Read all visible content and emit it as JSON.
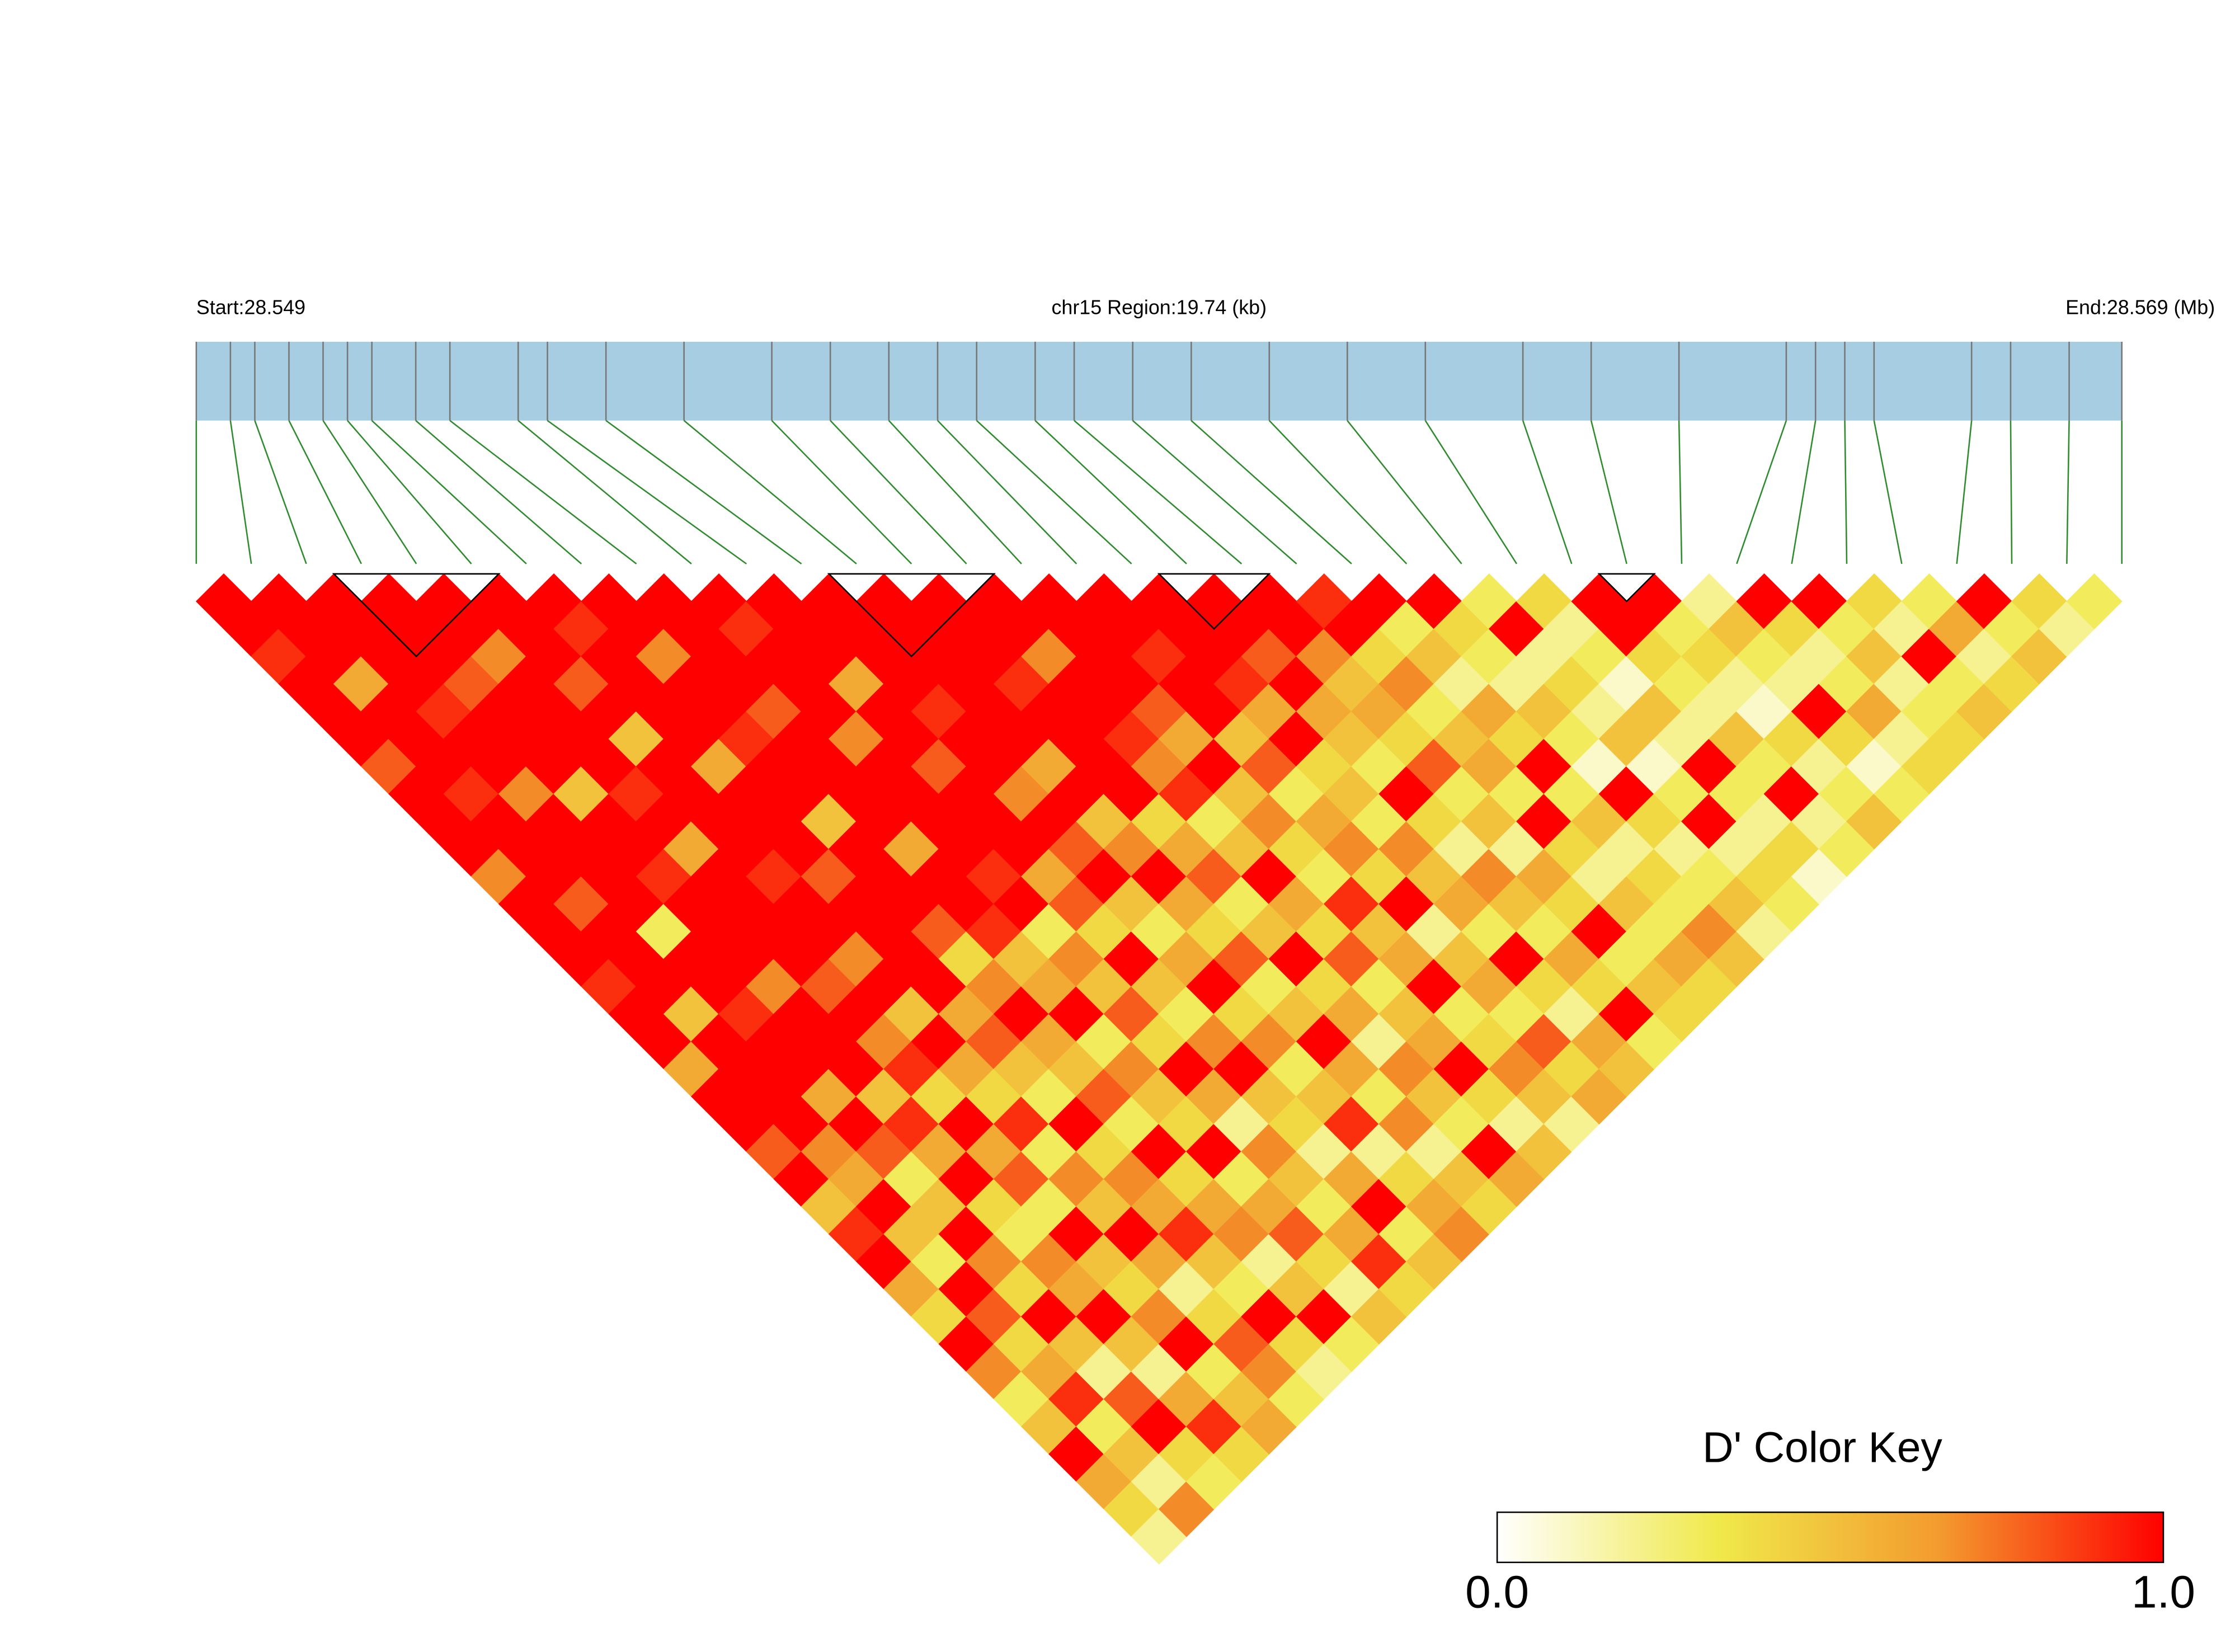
{
  "chart_data": {
    "type": "ld_heatmap",
    "start_label": "Start:28.549",
    "region_label": "chr15 Region:19.74 (kb)",
    "end_label": "End:28.569 (Mb)",
    "key_title": "D' Color Key",
    "xlim": [
      0,
      19.74
    ],
    "positions": [
      0,
      0.35,
      0.6,
      0.95,
      1.3,
      1.55,
      1.8,
      2.25,
      2.6,
      3.3,
      3.6,
      4.2,
      5.0,
      5.9,
      6.5,
      7.1,
      7.6,
      8.0,
      8.6,
      9.0,
      9.6,
      10.2,
      11.0,
      11.8,
      12.6,
      13.6,
      14.3,
      15.2,
      16.3,
      16.6,
      16.9,
      17.2,
      18.2,
      18.6,
      19.2,
      19.74
    ],
    "ld": [
      [
        1,
        1,
        0.9,
        1,
        1,
        1,
        0.8,
        1,
        1,
        1,
        0.7,
        1,
        1,
        1,
        0.9,
        1,
        1,
        0.6,
        1,
        1,
        0.8,
        1,
        0.5,
        0.9,
        1,
        0.6,
        0.4,
        1,
        0.7,
        0.3,
        0.5,
        1,
        0.6,
        0.4,
        0.2
      ],
      [
        1,
        1,
        1,
        0.6,
        1,
        1,
        1,
        0.9,
        1,
        1,
        1,
        0.8,
        1,
        1,
        1,
        0.5,
        1,
        1,
        1,
        1,
        0.7,
        0.6,
        1,
        0.5,
        0.3,
        1,
        0.8,
        0.4,
        0.6,
        0.9,
        0.3,
        0.5,
        0.2,
        0.7
      ],
      [
        1,
        1,
        1,
        1,
        0.9,
        1,
        1,
        0.7,
        1,
        1,
        1,
        1,
        0.3,
        1,
        1,
        0.9,
        1,
        1,
        0.6,
        1,
        0.8,
        0.3,
        0.5,
        1,
        0.7,
        0.4,
        1,
        0.5,
        0.2,
        0.8,
        1,
        0.4,
        0.3
      ],
      [
        1,
        1,
        1,
        0.8,
        1,
        1,
        1,
        0.5,
        1,
        1,
        0.9,
        1,
        1,
        1,
        0.7,
        1,
        1,
        1,
        0.5,
        0.9,
        0.6,
        1,
        0.4,
        0.3,
        0.7,
        0.6,
        1,
        0.5,
        0.2,
        0.6,
        0.9,
        0.4
      ],
      [
        1,
        1,
        0.7,
        1,
        1,
        1,
        1,
        0.9,
        1,
        0.6,
        1,
        1,
        1,
        1,
        0.8,
        1,
        0.7,
        0.9,
        0.4,
        1,
        0.6,
        0.8,
        0.3,
        1,
        0.5,
        0.4,
        0.7,
        1,
        0.3,
        0.5,
        0.6
      ],
      [
        1,
        1,
        1,
        0.8,
        1,
        0.5,
        1,
        1,
        1,
        1,
        0.9,
        1,
        1,
        0.7,
        1,
        0.5,
        1,
        0.6,
        0.4,
        0.9,
        0.3,
        0.7,
        0.5,
        1,
        0.6,
        0.2,
        0.4,
        0.8,
        0.7,
        0.3
      ],
      [
        1,
        0.9,
        1,
        1,
        1,
        1,
        0.6,
        1,
        1,
        1,
        0.8,
        1,
        1,
        1,
        1,
        0.6,
        0.8,
        0.5,
        0.3,
        1,
        0.4,
        0.7,
        0.6,
        0.9,
        0.5,
        0.3,
        1,
        0.4,
        0.2
      ],
      [
        1,
        1,
        0.7,
        1,
        1,
        0.9,
        1,
        1,
        0.5,
        1,
        1,
        1,
        0.8,
        0.4,
        0.7,
        1,
        0.6,
        0.5,
        0.8,
        0.3,
        1,
        0.4,
        0.6,
        0.7,
        0.2,
        0.5,
        1,
        0.3
      ],
      [
        1,
        1,
        1,
        1,
        0.8,
        1,
        1,
        1,
        1,
        0.6,
        1,
        1,
        0.9,
        0.5,
        0.6,
        1,
        0.3,
        0.7,
        0.5,
        0.4,
        1,
        0.3,
        0.6,
        0.8,
        0.4,
        0.2,
        0.5
      ],
      [
        1,
        0.9,
        1,
        1,
        1,
        0.7,
        1,
        1,
        1,
        1,
        0.9,
        1,
        0.3,
        0.7,
        0.5,
        0.8,
        0.4,
        1,
        0.6,
        0.2,
        0.7,
        0.5,
        0.3,
        0.6,
        0.9,
        0.4
      ],
      [
        1,
        1,
        1,
        0.6,
        1,
        1,
        0.8,
        1,
        1,
        1,
        0.6,
        0.8,
        0.4,
        1,
        0.5,
        0.3,
        0.7,
        1,
        0.5,
        0.4,
        0.2,
        0.6,
        1,
        0.3,
        0.5
      ],
      [
        1,
        1,
        1,
        1,
        0.9,
        1,
        1,
        0.7,
        1,
        0.8,
        1,
        0.5,
        0.3,
        0.6,
        1,
        0.4,
        0.7,
        0.3,
        0.5,
        0.9,
        0.2,
        0.4,
        0.6,
        0.7
      ],
      [
        1,
        1,
        1,
        1,
        1,
        1,
        0.6,
        1,
        0.5,
        0.7,
        1,
        0.6,
        0.4,
        0.8,
        0.3,
        0.5,
        1,
        0.6,
        0.3,
        0.7,
        0.2,
        0.5,
        0.4
      ],
      [
        1,
        1,
        1,
        0.9,
        1,
        1,
        1,
        1,
        0.4,
        0.6,
        0.8,
        0.3,
        0.5,
        1,
        0.4,
        0.6,
        0.2,
        0.7,
        0.5,
        0.3,
        1,
        0.6
      ],
      [
        1,
        1,
        0.7,
        1,
        1,
        0.9,
        0.7,
        0.9,
        0.3,
        0.5,
        1,
        0.6,
        0.4,
        0.8,
        0.3,
        0.5,
        0.6,
        1,
        0.4,
        0.2,
        0.5
      ],
      [
        1,
        1,
        1,
        1,
        0.8,
        0.6,
        1,
        0.5,
        0.7,
        0.4,
        0.3,
        0.9,
        0.5,
        0.6,
        1,
        0.3,
        0.4,
        0.7,
        0.5,
        0.2
      ],
      [
        1,
        1,
        0.9,
        1,
        1,
        0.5,
        0.8,
        0.3,
        0.6,
        0.7,
        0.4,
        1,
        0.2,
        0.5,
        0.6,
        0.3,
        0.8,
        0.4,
        0.6
      ],
      [
        1,
        1,
        1,
        0.9,
        0.6,
        1,
        0.4,
        0.5,
        0.3,
        0.7,
        0.5,
        0.6,
        0.3,
        1,
        0.4,
        0.2,
        0.6,
        0.5
      ],
      [
        1,
        1,
        0.8,
        1,
        0.6,
        0.5,
        0.3,
        1,
        0.4,
        0.2,
        0.7,
        0.5,
        0.3,
        0.6,
        0.4,
        1,
        0.3
      ],
      [
        1,
        1,
        0.7,
        0.5,
        0.6,
        0.4,
        0.8,
        0.3,
        0.5,
        0.2,
        0.6,
        0.4,
        1,
        0.3,
        0.5,
        0.4
      ],
      [
        0.9,
        1,
        0.4,
        0.7,
        0.3,
        0.5,
        0.6,
        0.3,
        1,
        0.4,
        0.2,
        0.5,
        0.3,
        0.6,
        0.4
      ],
      [
        1,
        0.3,
        0.5,
        0.2,
        0.6,
        0.4,
        1,
        0.3,
        0.5,
        0.2,
        0.4,
        0.3,
        0.7,
        0.5
      ],
      [
        1,
        0.4,
        0.3,
        0.2,
        0.5,
        0.3,
        0.1,
        1,
        0.4,
        0.2,
        0.3,
        0.5,
        0.2
      ],
      [
        0.3,
        1,
        0.2,
        0.4,
        0.2,
        0.5,
        0.1,
        0.3,
        1,
        0.2,
        0.4,
        0.3
      ],
      [
        0.4,
        0.2,
        0.3,
        0.1,
        0.5,
        0.2,
        1,
        0.3,
        0.2,
        0.4,
        0.1
      ],
      [
        1,
        1,
        0.4,
        0.3,
        0.2,
        0.5,
        0.3,
        1,
        0.2,
        0.3
      ],
      [
        1,
        0.3,
        0.4,
        0.2,
        0.1,
        0.4,
        0.2,
        0.3,
        0.5
      ],
      [
        0.2,
        0.5,
        0.3,
        0.2,
        1,
        0.4,
        0.1,
        0.3
      ],
      [
        1,
        0.4,
        0.2,
        0.3,
        0.6,
        0.2,
        0.4
      ],
      [
        1,
        0.3,
        0.5,
        0.2,
        0.3,
        0.4
      ],
      [
        0.4,
        0.2,
        1,
        0.3,
        0.5
      ],
      [
        0.3,
        0.6,
        0.2,
        0.4
      ],
      [
        1,
        0.3,
        0.5
      ],
      [
        0.4,
        0.2
      ],
      [
        0.3
      ]
    ],
    "blocks": [
      [
        2,
        6
      ],
      [
        11,
        15
      ],
      [
        17,
        20
      ],
      [
        25,
        27
      ]
    ],
    "colorscale": [
      "#ffffff",
      "#f0e94a",
      "#f39a2e",
      "#ff0000"
    ],
    "clim": [
      0,
      1
    ],
    "key_ticks": [
      {
        "value": 0,
        "label": "0.0"
      },
      {
        "value": 1,
        "label": "1.0"
      }
    ],
    "bar_color": "#a6cde1",
    "snp_line_color": "#777777",
    "connector_color": "#2e8b2e"
  }
}
